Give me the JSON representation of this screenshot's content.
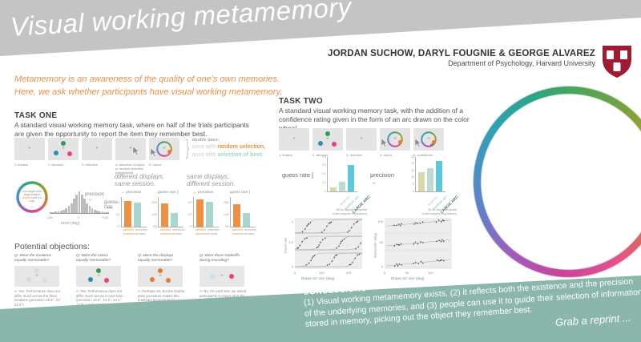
{
  "header": {
    "title": "Visual working metamemory",
    "authors": "JORDAN SUCHOW, DARYL FOUGNIE & GEORGE ALVAREZ",
    "affiliation": "Department of Psychology, Harvard University"
  },
  "intro": {
    "line1": "Metamemory is an awareness of the quality of one's own memories.",
    "line2": "Here, we ask whether participants have visual working metamemory."
  },
  "icons": {
    "fixation": "+",
    "brace": "}",
    "double_arrow": "↔",
    "right_arrow": "→",
    "error_bracket": "["
  },
  "task_one": {
    "heading": "TASK ONE",
    "description": "A standard visual working memory task, where on half of the trials participants are given the opportunity to report the item they remember best.",
    "panel_captions": [
      "1. fixation",
      "2. stimulus",
      "3. retention",
      "4. selection of object\nor random selection\n(interleaved)",
      "5. report"
    ],
    "double_pass": {
      "intro": "double pass:",
      "once_a": "once with",
      "random": "random selection,",
      "once_b": "once with",
      "best": "selection of best."
    }
  },
  "error_diagram": {
    "caption_pre": "error angle is the angle between ",
    "caption_reported": "reported",
    "caption_mid": " and ",
    "caption_true": "true",
    "caption_post": " color",
    "precision_label": "precision",
    "guess_rate_label": "guess rate",
    "xtick_left": "-180",
    "xtick_mid": "0",
    "xtick_right": "+180",
    "xlabel": "error (deg)",
    "bars": [
      0.04,
      0.05,
      0.07,
      0.09,
      0.12,
      0.16,
      0.22,
      0.32,
      0.46,
      0.66,
      0.86,
      1,
      0.86,
      0.66,
      0.46,
      0.32,
      0.22,
      0.16,
      0.12,
      0.09,
      0.07,
      0.05,
      0.04
    ]
  },
  "task_two": {
    "heading": "TASK TWO",
    "description": "A standard visual working memory task, with the addition of a confidence rating given in the form of an arc drawn on the color wheel.",
    "panel_captions": [
      "1. fixation",
      "2. stimulus",
      "3. retention",
      "4. report",
      "5. confidence"
    ]
  },
  "objections": {
    "heading": "Potential objections:",
    "items": [
      {
        "q": "Q: Were the locations\nequally memorable?",
        "a": "A: Yes. Performance does not differ much across the three locations (precision: 19.6°, 21°, 21.9°)."
      },
      {
        "q": "Q: Were the colors\nequally memorable?",
        "a": "A: Yes. Performance does not differ much across 6 color bins (precision: 14.6°, 14.2°, 13.1°, 13.9°, 14.9°, 14.3°)."
      },
      {
        "q": "Q: Were the displays\nequally memorable?",
        "a": "A: Perhaps not, but the double-pass procedure makes this irrelevant because we're comparing across conditions for the same items on the same displays."
      },
      {
        "q": "Q: Were there tradeoffs\nduring encoding?",
        "a": "A: No. On each trial, we asked participants to report all of the items from the display. We found independence of performance across items."
      }
    ]
  },
  "conclusions": {
    "heading": "CONCLUSIONS",
    "body": "(1) Visual working metamemory exists,  (2) it reflects both the existence and the precision\nof the underlying memories, and (3) people can use it to guide their selection of information\nstored in memory, picking out the object they remember best.",
    "reprint": "Grab a reprint ..."
  },
  "chart_data": [
    {
      "id": "t1a-precision",
      "type": "bar",
      "group_title": "different displays,\nsame session.",
      "label": "precision",
      "max": 25,
      "unit": "deg",
      "yticks": [
        {
          "v": 0,
          "l": "0°"
        },
        {
          "v": 10,
          "l": "10°"
        },
        {
          "v": 20,
          "l": "20°"
        }
      ],
      "categories": [
        "random\nselection",
        "selection\nof best"
      ],
      "values": [
        22,
        20.5
      ],
      "colors": [
        "#ef9043",
        "#a9d6cf"
      ]
    },
    {
      "id": "t1a-guess",
      "type": "bar",
      "label": "guess rate",
      "max": 25,
      "unit": "%",
      "yticks": [
        {
          "v": 0,
          "l": "0%"
        },
        {
          "v": 10,
          "l": "10%"
        },
        {
          "v": 20,
          "l": "20%"
        }
      ],
      "categories": [
        "random\nselection",
        "selection\nof best"
      ],
      "values": [
        20,
        12
      ],
      "colors": [
        "#ef9043",
        "#a9d6cf"
      ]
    },
    {
      "id": "t1b-precision",
      "type": "bar",
      "group_title": "same displays,\ndifferent session.",
      "label": "precision",
      "max": 25,
      "unit": "deg",
      "yticks": [
        {
          "v": 0,
          "l": "0°"
        },
        {
          "v": 10,
          "l": "10°"
        },
        {
          "v": 20,
          "l": "20°"
        }
      ],
      "categories": [
        "random\nselection",
        "selection\nof best"
      ],
      "values": [
        23,
        21
      ],
      "colors": [
        "#ef9043",
        "#a9d6cf"
      ]
    },
    {
      "id": "t1b-guess",
      "type": "bar",
      "label": "guess rate",
      "max": 25,
      "unit": "%",
      "yticks": [
        {
          "v": 0,
          "l": "0%"
        },
        {
          "v": 10,
          "l": "10%"
        },
        {
          "v": 20,
          "l": "20%"
        }
      ],
      "categories": [
        "random\nselection",
        "selection\nof best"
      ],
      "values": [
        19,
        11.5
      ],
      "colors": [
        "#ef9043",
        "#a9d6cf"
      ]
    },
    {
      "id": "t2-guess",
      "type": "bar",
      "label": "guess rate",
      "max": 0.4,
      "yticks": [
        {
          "v": 0,
          "l": "0"
        },
        {
          "v": 0.1,
          "l": "0.1"
        },
        {
          "v": 0.2,
          "l": "0.2"
        },
        {
          "v": 0.3,
          "l": "0.3"
        },
        {
          "v": 0.4,
          "l": "0.4"
        }
      ],
      "categories": [
        "small arc",
        "medium arc",
        "LARGE ARC"
      ],
      "values": [
        0.05,
        0.11,
        0.31
      ],
      "colors": [
        "#d8d9ab",
        "#bcdcd2",
        "#5ec8d8"
      ]
    },
    {
      "id": "t2-precision",
      "type": "bar",
      "label": "precision",
      "max": 25,
      "unit": "deg",
      "yticks": [
        {
          "v": 0,
          "l": "0"
        },
        {
          "v": 5,
          "l": "5"
        },
        {
          "v": 10,
          "l": "10"
        },
        {
          "v": 15,
          "l": "15"
        },
        {
          "v": 20,
          "l": "20"
        },
        {
          "v": 25,
          "l": "25"
        }
      ],
      "categories": [
        "small arc",
        "medium arc",
        "LARGE ARC"
      ],
      "values": [
        14,
        17,
        22
      ],
      "colors": [
        "#d8d9ab",
        "#bcdcd2",
        "#5ec8d8"
      ]
    },
    {
      "id": "fit-logistic",
      "type": "scatter",
      "caption": "(fit by logistic-weighted\nleast squares regression)",
      "ylabel": "Guess rate",
      "xlabel": "Drawn arc size (deg)",
      "xticks": [
        "0",
        "100",
        "200"
      ],
      "yticks": [
        "1",
        "0.5",
        "0"
      ],
      "xmax": 250,
      "rows": [
        {
          "midpoints": [
            45,
            120,
            215
          ]
        },
        {
          "midpoints": [
            25,
            95,
            170,
            245
          ]
        },
        {
          "midpoints": [
            60,
            140,
            220
          ]
        }
      ]
    },
    {
      "id": "fit-linear",
      "type": "scatter",
      "caption": "(fit by linear weighted\nleast squares regression)",
      "ylabel": "Imprecision (deg)",
      "xlabel": "Drawn arc size (deg)",
      "xticks": [
        "0",
        "50",
        "100"
      ],
      "yticks": [
        "100",
        "50",
        "0"
      ],
      "xmax": 150,
      "ymax": 160,
      "rows": [
        {
          "start": 80,
          "slope": 0.5
        },
        {
          "start": 45,
          "slope": 0.5
        },
        {
          "start": 5,
          "slope": 0.55
        }
      ]
    }
  ]
}
